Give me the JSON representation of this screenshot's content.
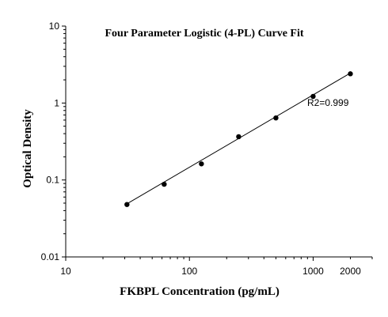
{
  "chart_data": {
    "type": "scatter",
    "title": "Four Parameter Logistic (4-PL) Curve Fit",
    "xlabel": "FKBPL  Concentration (pg/mL)",
    "ylabel": "Optical Density",
    "x_scale": "log",
    "y_scale": "log",
    "xlim": [
      10,
      3000
    ],
    "ylim": [
      0.01,
      10
    ],
    "x_ticks": [
      {
        "value": 10,
        "label": "10"
      },
      {
        "value": 100,
        "label": "100"
      },
      {
        "value": 1000,
        "label": "1000"
      },
      {
        "value": 2000,
        "label": "2000"
      }
    ],
    "y_ticks": [
      {
        "value": 0.01,
        "label": "0.01"
      },
      {
        "value": 0.1,
        "label": "0.1"
      },
      {
        "value": 1,
        "label": "1"
      },
      {
        "value": 10,
        "label": "10"
      }
    ],
    "series": [
      {
        "points": [
          {
            "x": 31.25,
            "y": 0.048
          },
          {
            "x": 62.5,
            "y": 0.088
          },
          {
            "x": 125,
            "y": 0.162
          },
          {
            "x": 250,
            "y": 0.365
          },
          {
            "x": 500,
            "y": 0.64
          },
          {
            "x": 1000,
            "y": 1.22
          },
          {
            "x": 2000,
            "y": 2.4
          }
        ]
      }
    ],
    "fit_line": [
      {
        "x": 31.25,
        "y": 0.049
      },
      {
        "x": 2000,
        "y": 2.45
      }
    ],
    "annotation": "R2=0.999",
    "grid": false,
    "colors": {
      "points": "#000000",
      "line": "#000000",
      "axes": "#000000"
    }
  }
}
